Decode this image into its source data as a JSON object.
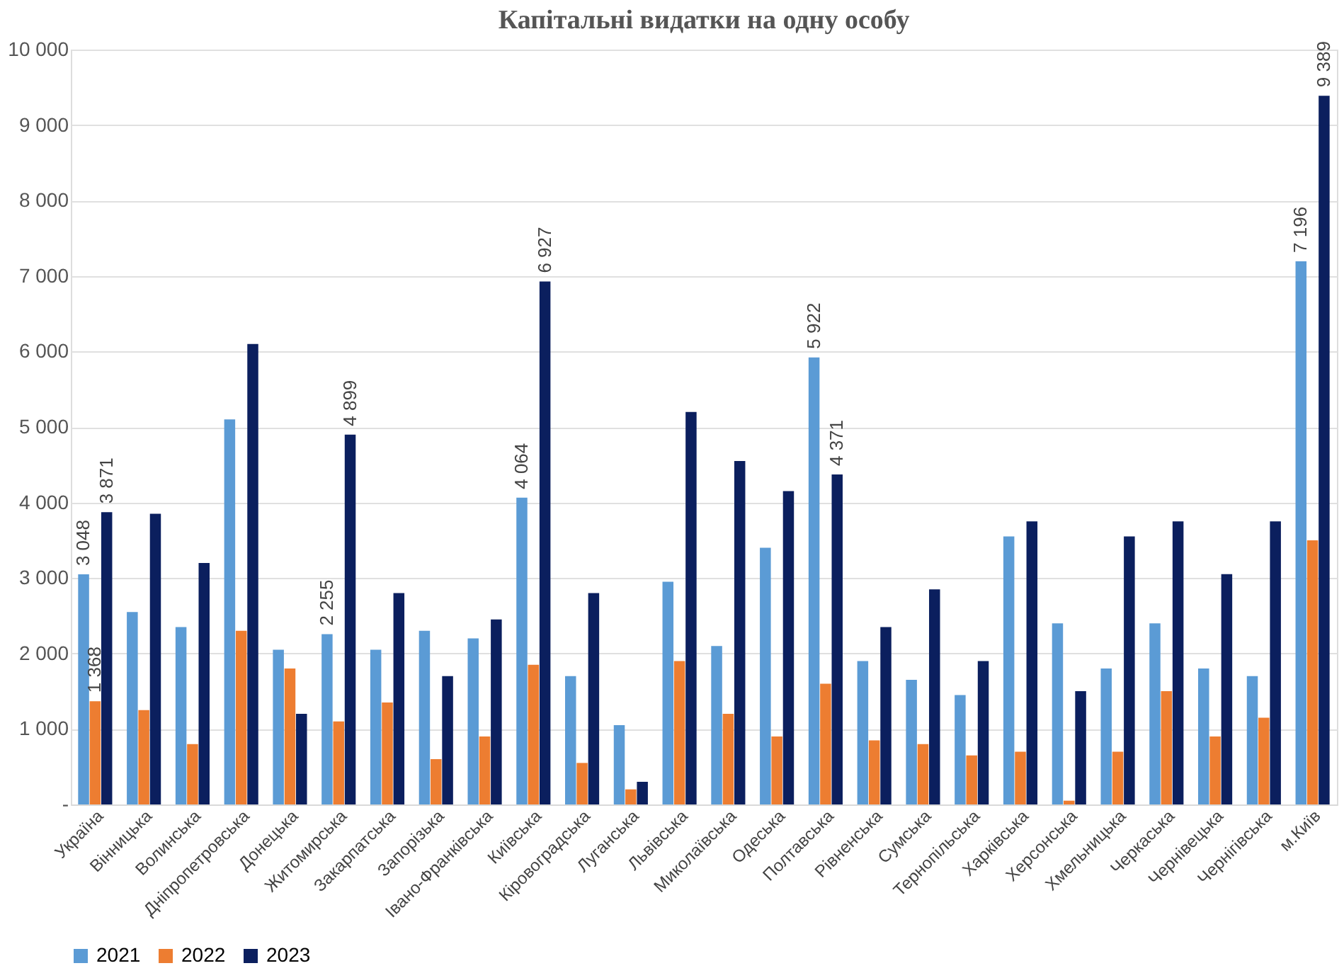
{
  "chart_data": {
    "type": "bar",
    "title": "Капітальні видатки на одну особу",
    "categories": [
      "Україна",
      "Вінницька",
      "Волинська",
      "Дніпропетровська",
      "Донецька",
      "Житомирська",
      "Закарпатська",
      "Запорізька",
      "Івано-Франківська",
      "Київська",
      "Кіровоградська",
      "Луганська",
      "Львівська",
      "Миколаївська",
      "Одеська",
      "Полтавська",
      "Рівненська",
      "Сумська",
      "Тернопільська",
      "Харківська",
      "Херсонська",
      "Хмельницька",
      "Черкаська",
      "Чернівецька",
      "Чернігівська",
      "м.Київ"
    ],
    "series": [
      {
        "name": "2021",
        "color": "#5b9bd5",
        "values": [
          3048,
          2550,
          2350,
          5100,
          2050,
          2255,
          2050,
          2300,
          2200,
          4064,
          1700,
          1050,
          2950,
          2100,
          3400,
          5922,
          1900,
          1650,
          1450,
          3550,
          2400,
          1800,
          2400,
          1800,
          1700,
          7196
        ],
        "value_labels": [
          "3 048",
          null,
          null,
          null,
          null,
          "2 255",
          null,
          null,
          null,
          "4 064",
          null,
          null,
          null,
          null,
          null,
          "5 922",
          null,
          null,
          null,
          null,
          null,
          null,
          null,
          null,
          null,
          "7 196"
        ]
      },
      {
        "name": "2022",
        "color": "#ed7d31",
        "values": [
          1368,
          1250,
          800,
          2300,
          1800,
          1100,
          1350,
          600,
          900,
          1850,
          550,
          200,
          1900,
          1200,
          900,
          1600,
          850,
          800,
          650,
          700,
          50,
          700,
          1500,
          900,
          1150,
          3500
        ],
        "value_labels": [
          "1 368",
          null,
          null,
          null,
          null,
          null,
          null,
          null,
          null,
          null,
          null,
          null,
          null,
          null,
          null,
          null,
          null,
          null,
          null,
          null,
          null,
          null,
          null,
          null,
          null,
          null
        ]
      },
      {
        "name": "2023",
        "color": "#0b1f5e",
        "values": [
          3871,
          3850,
          3200,
          6100,
          1200,
          4899,
          2800,
          1700,
          2450,
          6927,
          2800,
          300,
          5200,
          4550,
          4150,
          4371,
          2350,
          2850,
          1900,
          3750,
          1500,
          3550,
          3750,
          3050,
          3750,
          9389
        ],
        "value_labels": [
          "3 871",
          null,
          null,
          null,
          null,
          "4 899",
          null,
          null,
          null,
          "6 927",
          null,
          null,
          null,
          null,
          null,
          "4 371",
          null,
          null,
          null,
          null,
          null,
          null,
          null,
          null,
          null,
          "9 389"
        ]
      }
    ],
    "ylim": [
      0,
      10000
    ],
    "yticks": [
      {
        "value": 0,
        "label": "-"
      },
      {
        "value": 1000,
        "label": "1 000"
      },
      {
        "value": 2000,
        "label": "2 000"
      },
      {
        "value": 3000,
        "label": "3 000"
      },
      {
        "value": 4000,
        "label": "4 000"
      },
      {
        "value": 5000,
        "label": "5 000"
      },
      {
        "value": 6000,
        "label": "6 000"
      },
      {
        "value": 7000,
        "label": "7 000"
      },
      {
        "value": 8000,
        "label": "8 000"
      },
      {
        "value": 9000,
        "label": "9 000"
      },
      {
        "value": 10000,
        "label": "10 000"
      }
    ],
    "grid": "y",
    "legend": "bottom"
  }
}
